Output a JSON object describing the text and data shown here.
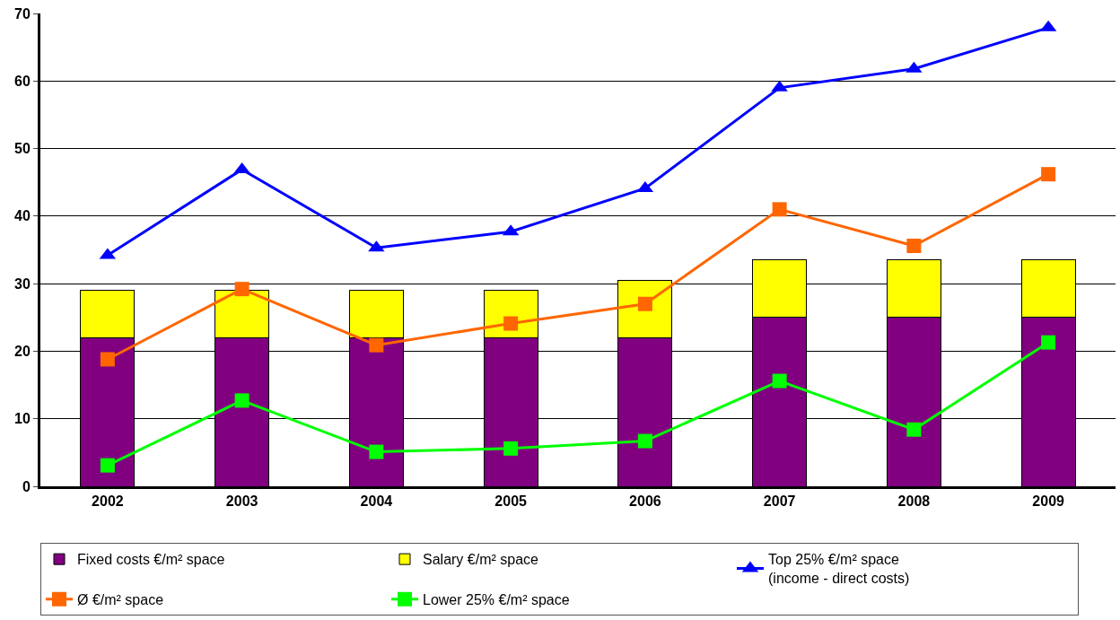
{
  "chart_data": {
    "type": "bar",
    "stacked": true,
    "categories": [
      "2002",
      "2003",
      "2004",
      "2005",
      "2006",
      "2007",
      "2008",
      "2009"
    ],
    "series": [
      {
        "name": "Fixed costs €/m² space",
        "color": "#800080",
        "values": [
          22,
          22,
          22,
          22,
          22,
          25,
          25,
          25
        ]
      },
      {
        "name": "Salary €/m² space",
        "color": "#ffff00",
        "values": [
          7,
          7,
          7,
          7,
          8.5,
          8.5,
          8.5,
          8.5
        ]
      },
      {
        "name": "Top 25% €/m² space\n(income - direct costs)",
        "type": "line",
        "color": "#0000ff",
        "marker": "triangle",
        "values": [
          34.2,
          46.9,
          35.3,
          37.7,
          44.1,
          59.0,
          61.8,
          67.9
        ]
      },
      {
        "name": "Ø €/m² space",
        "type": "line",
        "color": "#ff6600",
        "marker": "square",
        "values": [
          18.8,
          29.2,
          20.9,
          24.1,
          27.0,
          41.0,
          35.6,
          46.2
        ]
      },
      {
        "name": "Lower 25% €/m² space",
        "type": "line",
        "color": "#00ff00",
        "marker": "square",
        "values": [
          3.1,
          12.7,
          5.1,
          5.6,
          6.7,
          15.6,
          8.4,
          21.3
        ]
      }
    ],
    "ylim": [
      0,
      70
    ],
    "yticks": [
      0,
      10,
      20,
      30,
      40,
      50,
      60,
      70
    ],
    "grid": "y",
    "legend": "bottom"
  }
}
